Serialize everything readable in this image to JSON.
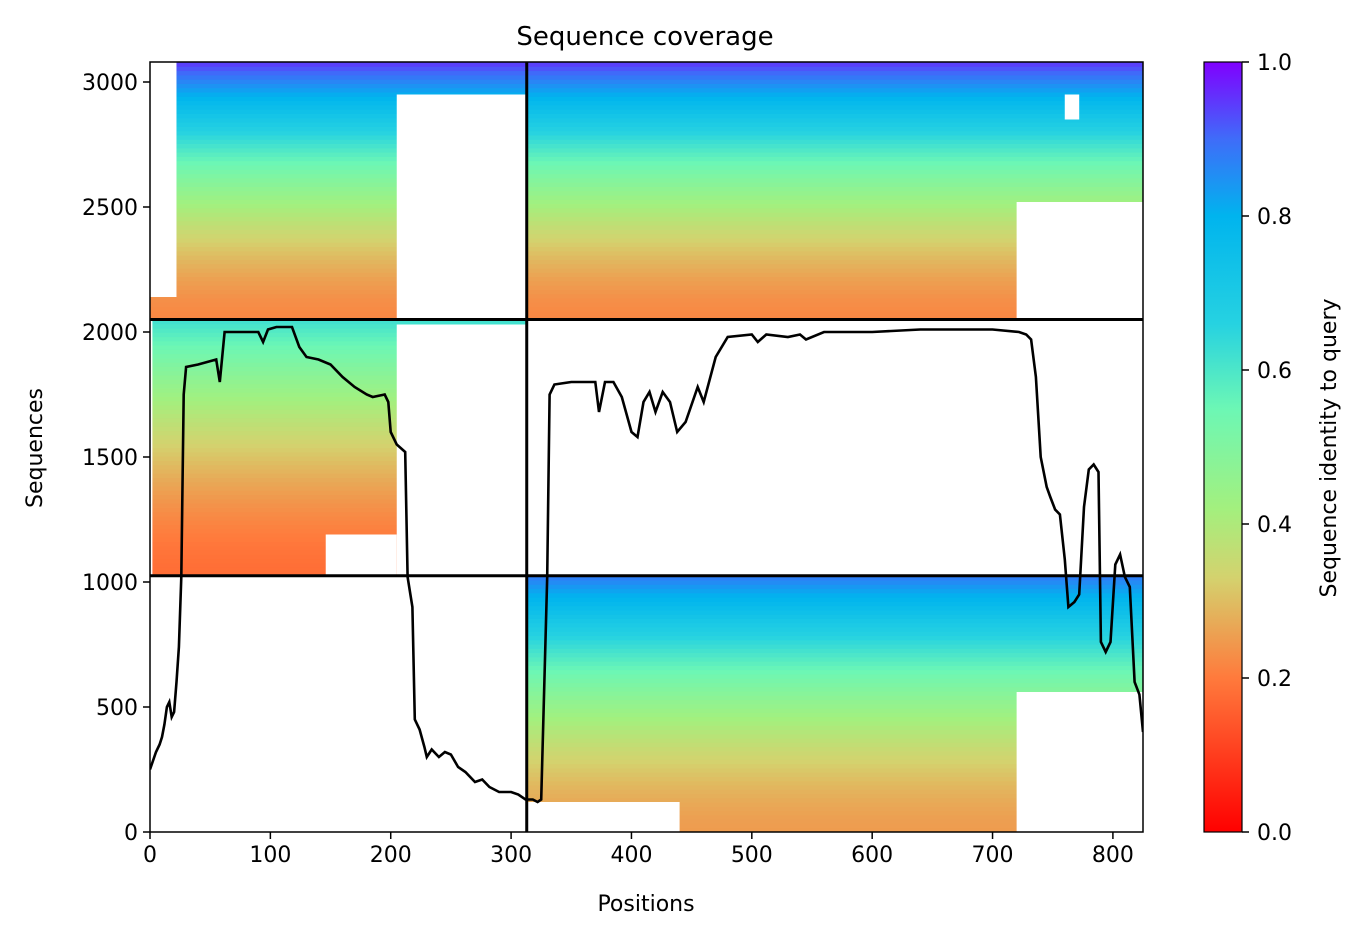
{
  "chart_data": {
    "type": "heatmap",
    "title": "Sequence coverage",
    "xlabel": "Positions",
    "ylabel": "Sequences",
    "xlim": [
      0,
      825
    ],
    "ylim": [
      0,
      3080
    ],
    "xticks": [
      0,
      100,
      200,
      300,
      400,
      500,
      600,
      700,
      800
    ],
    "yticks": [
      0,
      500,
      1000,
      1500,
      2000,
      2500,
      3000
    ],
    "colorbar": {
      "label": "Sequence identity to query",
      "colormap": "rainbow_r",
      "range": [
        0,
        1
      ],
      "ticks": [
        0.0,
        0.2,
        0.4,
        0.6,
        0.8,
        1.0
      ],
      "tick_labels": [
        "0.0",
        "0.2",
        "0.4",
        "0.6",
        "0.8",
        "1.0"
      ]
    },
    "chain_breaks_positions": [
      313
    ],
    "block_boundaries_sequences": [
      1025,
      2050
    ],
    "blocks": [
      {
        "name": "top",
        "seq_range": [
          2050,
          3080
        ],
        "identity_top": 0.95,
        "identity_bottom": 0.22
      },
      {
        "name": "middle",
        "seq_range": [
          1025,
          2050
        ],
        "identity_top": 0.62,
        "identity_bottom": 0.18
      },
      {
        "name": "bottom",
        "seq_range": [
          0,
          1025
        ],
        "identity_top": 0.88,
        "identity_bottom": 0.25
      }
    ],
    "coverage_series": {
      "name": "coverage",
      "color": "#000000",
      "points": [
        [
          0,
          250
        ],
        [
          5,
          320
        ],
        [
          8,
          350
        ],
        [
          10,
          380
        ],
        [
          12,
          430
        ],
        [
          14,
          500
        ],
        [
          16,
          520
        ],
        [
          18,
          460
        ],
        [
          20,
          480
        ],
        [
          22,
          600
        ],
        [
          24,
          740
        ],
        [
          26,
          1020
        ],
        [
          28,
          1750
        ],
        [
          30,
          1860
        ],
        [
          40,
          1870
        ],
        [
          55,
          1890
        ],
        [
          58,
          1800
        ],
        [
          62,
          2000
        ],
        [
          90,
          2000
        ],
        [
          94,
          1960
        ],
        [
          98,
          2010
        ],
        [
          105,
          2020
        ],
        [
          118,
          2020
        ],
        [
          124,
          1940
        ],
        [
          130,
          1900
        ],
        [
          140,
          1890
        ],
        [
          150,
          1870
        ],
        [
          160,
          1820
        ],
        [
          170,
          1780
        ],
        [
          180,
          1750
        ],
        [
          185,
          1740
        ],
        [
          195,
          1750
        ],
        [
          198,
          1720
        ],
        [
          200,
          1600
        ],
        [
          205,
          1550
        ],
        [
          212,
          1520
        ],
        [
          214,
          1020
        ],
        [
          216,
          960
        ],
        [
          218,
          900
        ],
        [
          220,
          450
        ],
        [
          224,
          410
        ],
        [
          228,
          340
        ],
        [
          230,
          300
        ],
        [
          234,
          330
        ],
        [
          240,
          300
        ],
        [
          245,
          320
        ],
        [
          250,
          310
        ],
        [
          256,
          260
        ],
        [
          262,
          240
        ],
        [
          270,
          200
        ],
        [
          276,
          210
        ],
        [
          282,
          180
        ],
        [
          290,
          160
        ],
        [
          300,
          160
        ],
        [
          306,
          150
        ],
        [
          312,
          130
        ],
        [
          318,
          130
        ],
        [
          322,
          120
        ],
        [
          325,
          130
        ],
        [
          330,
          1020
        ],
        [
          332,
          1750
        ],
        [
          336,
          1790
        ],
        [
          350,
          1800
        ],
        [
          370,
          1800
        ],
        [
          373,
          1680
        ],
        [
          378,
          1800
        ],
        [
          385,
          1800
        ],
        [
          392,
          1740
        ],
        [
          400,
          1600
        ],
        [
          405,
          1580
        ],
        [
          410,
          1720
        ],
        [
          415,
          1760
        ],
        [
          420,
          1680
        ],
        [
          426,
          1760
        ],
        [
          432,
          1720
        ],
        [
          438,
          1600
        ],
        [
          445,
          1640
        ],
        [
          455,
          1780
        ],
        [
          460,
          1720
        ],
        [
          470,
          1900
        ],
        [
          480,
          1980
        ],
        [
          500,
          1990
        ],
        [
          505,
          1960
        ],
        [
          512,
          1990
        ],
        [
          530,
          1980
        ],
        [
          540,
          1990
        ],
        [
          545,
          1970
        ],
        [
          560,
          2000
        ],
        [
          600,
          2000
        ],
        [
          640,
          2010
        ],
        [
          700,
          2010
        ],
        [
          722,
          2000
        ],
        [
          728,
          1990
        ],
        [
          732,
          1970
        ],
        [
          736,
          1820
        ],
        [
          740,
          1500
        ],
        [
          745,
          1380
        ],
        [
          748,
          1340
        ],
        [
          752,
          1290
        ],
        [
          756,
          1270
        ],
        [
          760,
          1090
        ],
        [
          763,
          900
        ],
        [
          768,
          920
        ],
        [
          772,
          950
        ],
        [
          776,
          1300
        ],
        [
          780,
          1450
        ],
        [
          784,
          1470
        ],
        [
          788,
          1440
        ],
        [
          790,
          760
        ],
        [
          794,
          720
        ],
        [
          798,
          760
        ],
        [
          802,
          1070
        ],
        [
          806,
          1110
        ],
        [
          810,
          1020
        ],
        [
          814,
          980
        ],
        [
          818,
          600
        ],
        [
          822,
          550
        ],
        [
          825,
          400
        ]
      ]
    }
  }
}
